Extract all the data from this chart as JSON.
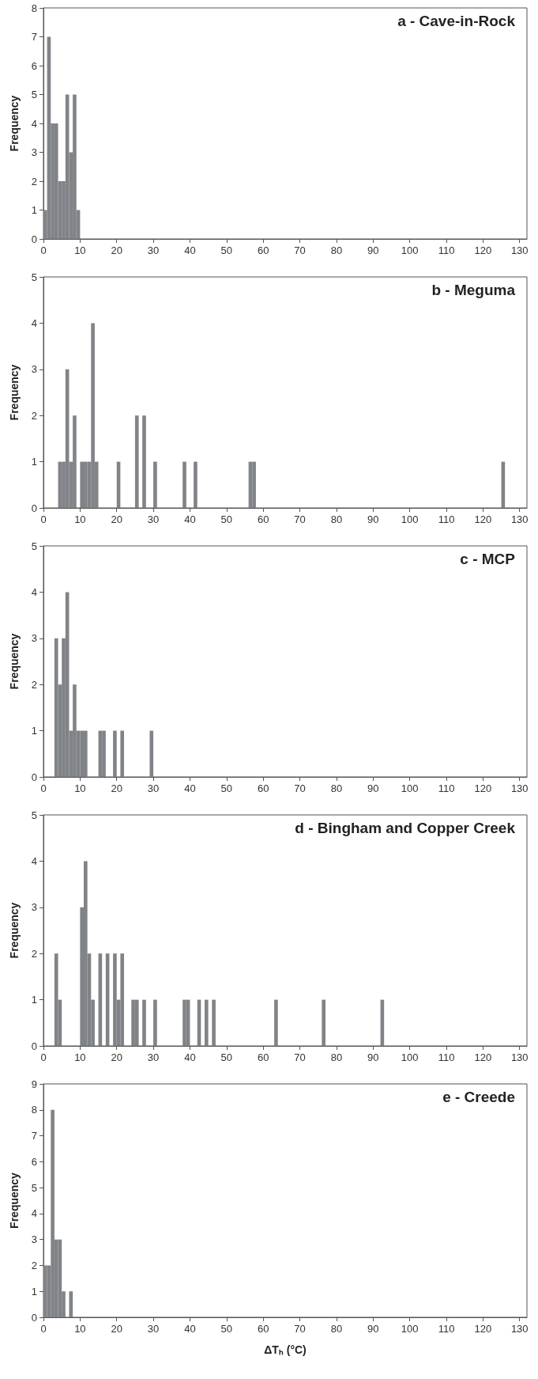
{
  "chart_data": [
    {
      "type": "histogram",
      "title": "a - Cave-in-Rock",
      "ylabel": "Frequency",
      "color": "#808387",
      "bins": [
        0,
        1,
        2,
        3,
        4,
        5,
        6,
        7,
        8,
        9,
        10
      ],
      "values": [
        1,
        7,
        4,
        4,
        2,
        2,
        5,
        3,
        5,
        1
      ],
      "xlim": [
        0,
        132
      ],
      "xticks": [
        0,
        10,
        20,
        30,
        40,
        50,
        60,
        70,
        80,
        90,
        100,
        110,
        120,
        130
      ],
      "ylim": [
        0,
        8
      ],
      "yticks": [
        0,
        1,
        2,
        3,
        4,
        5,
        6,
        7,
        8
      ]
    },
    {
      "type": "histogram",
      "title": "b - Meguma",
      "ylabel": "Frequency",
      "color": "#808387",
      "bins": [
        0,
        1,
        2,
        3,
        4,
        5,
        6,
        7,
        8,
        9,
        10,
        11,
        12,
        13,
        14,
        15,
        16,
        17,
        18,
        19,
        20,
        21,
        22,
        23,
        24,
        25,
        26,
        27,
        28,
        29,
        30,
        31,
        32,
        33,
        34,
        35,
        36,
        37,
        38,
        39,
        40,
        41,
        42,
        43,
        44,
        45,
        46,
        47,
        48,
        49,
        50,
        51,
        52,
        53,
        54,
        55,
        56,
        57,
        58,
        59,
        60,
        61,
        62,
        63,
        64,
        65,
        66,
        67,
        68,
        69,
        70,
        71,
        72,
        73,
        74,
        75,
        76,
        77,
        78,
        79,
        80,
        81,
        82,
        83,
        84,
        85,
        86,
        87,
        88,
        89,
        90,
        91,
        92,
        93,
        94,
        95,
        96,
        97,
        98,
        99,
        100,
        101,
        102,
        103,
        104,
        105,
        106,
        107,
        108,
        109,
        110,
        111,
        112,
        113,
        114,
        115,
        116,
        117,
        118,
        119,
        120,
        121,
        122,
        123,
        124,
        125,
        126
      ],
      "values": [
        0,
        0,
        0,
        0,
        1,
        1,
        3,
        1,
        2,
        0,
        1,
        1,
        1,
        4,
        1,
        0,
        0,
        0,
        0,
        0,
        1,
        0,
        0,
        0,
        0,
        2,
        0,
        2,
        0,
        0,
        1,
        0,
        0,
        0,
        0,
        0,
        0,
        0,
        1,
        0,
        0,
        1,
        0,
        0,
        0,
        0,
        0,
        0,
        0,
        0,
        0,
        0,
        0,
        0,
        0,
        0,
        1,
        1,
        0,
        0,
        0,
        0,
        0,
        0,
        0,
        0,
        0,
        0,
        0,
        0,
        0,
        0,
        0,
        0,
        0,
        0,
        0,
        0,
        0,
        0,
        0,
        0,
        0,
        0,
        0,
        0,
        0,
        0,
        0,
        0,
        0,
        0,
        0,
        0,
        0,
        0,
        0,
        0,
        0,
        0,
        0,
        0,
        0,
        0,
        0,
        0,
        0,
        0,
        0,
        0,
        0,
        0,
        0,
        0,
        0,
        0,
        0,
        0,
        0,
        0,
        0,
        0,
        0,
        0,
        0,
        1
      ],
      "xlim": [
        0,
        132
      ],
      "xticks": [
        0,
        10,
        20,
        30,
        40,
        50,
        60,
        70,
        80,
        90,
        100,
        110,
        120,
        130
      ],
      "ylim": [
        0,
        5
      ],
      "yticks": [
        0,
        1,
        2,
        3,
        4,
        5
      ]
    },
    {
      "type": "histogram",
      "title": "c - MCP",
      "ylabel": "Frequency",
      "color": "#808387",
      "bins": [
        0,
        1,
        2,
        3,
        4,
        5,
        6,
        7,
        8,
        9,
        10,
        11,
        12,
        13,
        14,
        15,
        16,
        17,
        18,
        19,
        20,
        21,
        22,
        23,
        24,
        25,
        26,
        27,
        28,
        29,
        30
      ],
      "values": [
        0,
        0,
        0,
        3,
        2,
        3,
        4,
        1,
        2,
        1,
        1,
        1,
        0,
        0,
        0,
        1,
        1,
        0,
        0,
        1,
        0,
        1,
        0,
        0,
        0,
        0,
        0,
        0,
        0,
        1
      ],
      "xlim": [
        0,
        132
      ],
      "xticks": [
        0,
        10,
        20,
        30,
        40,
        50,
        60,
        70,
        80,
        90,
        100,
        110,
        120,
        130
      ],
      "ylim": [
        0,
        5
      ],
      "yticks": [
        0,
        1,
        2,
        3,
        4,
        5
      ]
    },
    {
      "type": "histogram",
      "title": "d - Bingham and Copper Creek",
      "ylabel": "Frequency",
      "color": "#808387",
      "bins": [
        0,
        1,
        2,
        3,
        4,
        5,
        6,
        7,
        8,
        9,
        10,
        11,
        12,
        13,
        14,
        15,
        16,
        17,
        18,
        19,
        20,
        21,
        22,
        23,
        24,
        25,
        26,
        27,
        28,
        29,
        30,
        31,
        32,
        33,
        34,
        35,
        36,
        37,
        38,
        39,
        40,
        41,
        42,
        43,
        44,
        45,
        46,
        47,
        48,
        49,
        50,
        51,
        52,
        53,
        54,
        55,
        56,
        57,
        58,
        59,
        60,
        61,
        62,
        63,
        64,
        65,
        66,
        67,
        68,
        69,
        70,
        71,
        72,
        73,
        74,
        75,
        76,
        77,
        78,
        79,
        80,
        81,
        82,
        83,
        84,
        85,
        86,
        87,
        88,
        89,
        90,
        91,
        92,
        93
      ],
      "values": [
        0,
        0,
        0,
        2,
        1,
        0,
        0,
        0,
        0,
        0,
        3,
        4,
        2,
        1,
        0,
        2,
        0,
        2,
        0,
        2,
        1,
        2,
        0,
        0,
        1,
        1,
        0,
        1,
        0,
        0,
        1,
        0,
        0,
        0,
        0,
        0,
        0,
        0,
        1,
        1,
        0,
        0,
        1,
        0,
        1,
        0,
        1,
        0,
        0,
        0,
        0,
        0,
        0,
        0,
        0,
        0,
        0,
        0,
        0,
        0,
        0,
        0,
        0,
        1,
        0,
        0,
        0,
        0,
        0,
        0,
        0,
        0,
        0,
        0,
        0,
        0,
        1,
        0,
        0,
        0,
        0,
        0,
        0,
        0,
        0,
        0,
        0,
        0,
        0,
        0,
        0,
        0,
        1
      ],
      "xlim": [
        0,
        132
      ],
      "xticks": [
        0,
        10,
        20,
        30,
        40,
        50,
        60,
        70,
        80,
        90,
        100,
        110,
        120,
        130
      ],
      "ylim": [
        0,
        5
      ],
      "yticks": [
        0,
        1,
        2,
        3,
        4,
        5
      ]
    },
    {
      "type": "histogram",
      "title": "e - Creede",
      "ylabel": "Frequency",
      "xlabel": "ΔTₕ (°C)",
      "color": "#808387",
      "bins": [
        0,
        1,
        2,
        3,
        4,
        5,
        6,
        7,
        8
      ],
      "values": [
        2,
        2,
        8,
        3,
        3,
        1,
        0,
        1
      ],
      "xlim": [
        0,
        132
      ],
      "xticks": [
        0,
        10,
        20,
        30,
        40,
        50,
        60,
        70,
        80,
        90,
        100,
        110,
        120,
        130
      ],
      "ylim": [
        0,
        9
      ],
      "yticks": [
        0,
        1,
        2,
        3,
        4,
        5,
        6,
        7,
        8,
        9
      ]
    }
  ]
}
